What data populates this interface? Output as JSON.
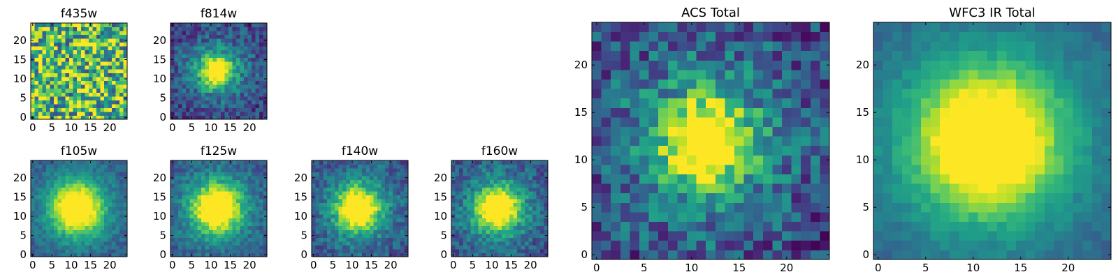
{
  "chart_data": [
    {
      "type": "heatmap",
      "title": "f435w",
      "grid": false,
      "xlim": [
        0,
        25
      ],
      "ylim": [
        0,
        25
      ],
      "xticks": [
        "0",
        "5",
        "10",
        "15",
        "20"
      ],
      "yticks": [
        "0",
        "5",
        "10",
        "15",
        "20"
      ],
      "colormap": "viridis",
      "source_center": [
        12,
        12
      ],
      "peak_fraction": 0.0,
      "noise_level": 0.9,
      "falloff_radius": 3.5
    },
    {
      "type": "heatmap",
      "title": "f814w",
      "grid": false,
      "xlim": [
        0,
        25
      ],
      "ylim": [
        0,
        25
      ],
      "xticks": [
        "0",
        "5",
        "10",
        "15",
        "20"
      ],
      "yticks": [
        "0",
        "5",
        "10",
        "15",
        "20"
      ],
      "colormap": "viridis",
      "source_center": [
        12,
        12.5
      ],
      "peak_fraction": 0.95,
      "noise_level": 0.35,
      "falloff_radius": 2.6
    },
    {
      "type": "heatmap",
      "title": "f105w",
      "grid": false,
      "xlim": [
        0,
        25
      ],
      "ylim": [
        0,
        25
      ],
      "xticks": [
        "0",
        "5",
        "10",
        "15",
        "20"
      ],
      "yticks": [
        "0",
        "5",
        "10",
        "15",
        "20"
      ],
      "colormap": "viridis",
      "source_center": [
        12,
        12.5
      ],
      "peak_fraction": 1.0,
      "noise_level": 0.2,
      "falloff_radius": 4.2
    },
    {
      "type": "heatmap",
      "title": "f125w",
      "grid": false,
      "xlim": [
        0,
        25
      ],
      "ylim": [
        0,
        25
      ],
      "xticks": [
        "0",
        "5",
        "10",
        "15",
        "20"
      ],
      "yticks": [
        "0",
        "5",
        "10",
        "15",
        "20"
      ],
      "colormap": "viridis",
      "source_center": [
        12,
        12.5
      ],
      "peak_fraction": 1.0,
      "noise_level": 0.25,
      "falloff_radius": 4.0
    },
    {
      "type": "heatmap",
      "title": "f140w",
      "grid": false,
      "xlim": [
        0,
        25
      ],
      "ylim": [
        0,
        25
      ],
      "xticks": [
        "0",
        "5",
        "10",
        "15",
        "20"
      ],
      "yticks": [
        "0",
        "5",
        "10",
        "15",
        "20"
      ],
      "colormap": "viridis",
      "source_center": [
        12,
        12.5
      ],
      "peak_fraction": 1.0,
      "noise_level": 0.3,
      "falloff_radius": 3.6
    },
    {
      "type": "heatmap",
      "title": "f160w",
      "grid": false,
      "xlim": [
        0,
        25
      ],
      "ylim": [
        0,
        25
      ],
      "xticks": [
        "0",
        "5",
        "10",
        "15",
        "20"
      ],
      "yticks": [
        "0",
        "5",
        "10",
        "15",
        "20"
      ],
      "colormap": "viridis",
      "source_center": [
        12,
        12.5
      ],
      "peak_fraction": 1.0,
      "noise_level": 0.3,
      "falloff_radius": 3.6
    },
    {
      "type": "heatmap",
      "title": "ACS Total",
      "grid": false,
      "xlim": [
        0,
        25
      ],
      "ylim": [
        0,
        25
      ],
      "xticks": [
        "0",
        "5",
        "10",
        "15",
        "20"
      ],
      "yticks": [
        "0",
        "5",
        "10",
        "15",
        "20"
      ],
      "colormap": "viridis",
      "source_center": [
        12,
        12.5
      ],
      "peak_fraction": 1.0,
      "noise_level": 0.45,
      "falloff_radius": 3.0
    },
    {
      "type": "heatmap",
      "title": "WFC3 IR Total",
      "grid": false,
      "xlim": [
        0,
        25
      ],
      "ylim": [
        0,
        25
      ],
      "xticks": [
        "0",
        "5",
        "10",
        "15",
        "20"
      ],
      "yticks": [
        "0",
        "5",
        "10",
        "15",
        "20"
      ],
      "colormap": "viridis",
      "source_center": [
        12,
        12.5
      ],
      "peak_fraction": 1.0,
      "noise_level": 0.12,
      "falloff_radius": 5.0
    }
  ],
  "colors": {
    "viridis": [
      "#440154",
      "#482878",
      "#3e4989",
      "#31688e",
      "#26828e",
      "#1f9e89",
      "#35b779",
      "#6ece58",
      "#b5de2b",
      "#fde725"
    ]
  }
}
